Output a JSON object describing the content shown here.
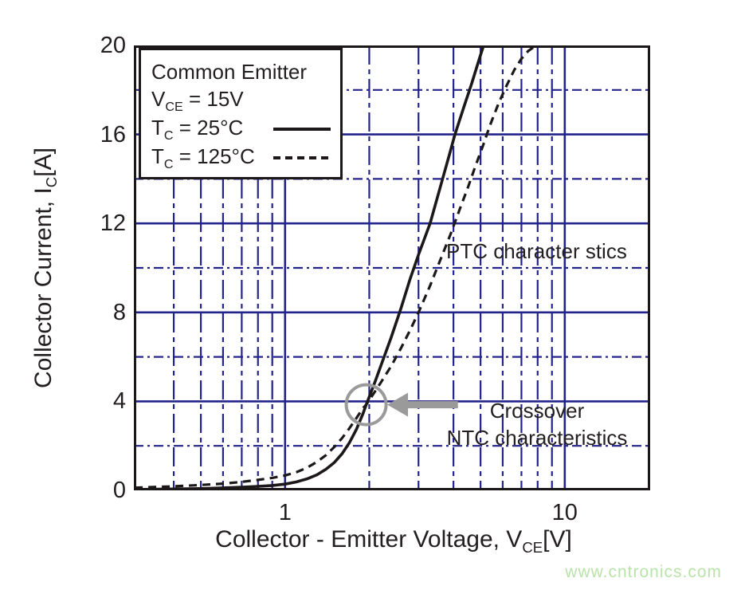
{
  "page": {
    "watermark": "www.cntronics.com",
    "watermark_color": "#b9e3aa"
  },
  "chart_data": {
    "type": "line",
    "x_axis": {
      "scale": "log",
      "min": 0.288,
      "max": 20.2,
      "label_pre": "Collector - Emitter Voltage, V",
      "label_sub": "CE",
      "label_post": "[V]",
      "ticks": [
        {
          "value": 1,
          "label": "1"
        },
        {
          "value": 10,
          "label": "10"
        }
      ],
      "major_gridlines": [
        1,
        10
      ],
      "minor_gridlines": [
        0.4,
        0.5,
        0.6,
        0.7,
        0.8,
        0.9,
        2,
        3,
        4,
        5,
        6,
        7,
        8,
        9
      ]
    },
    "y_axis": {
      "scale": "linear",
      "min": 0,
      "max": 20,
      "label_pre": "Collector Current, I",
      "label_sub": "C",
      "label_post": "[A]",
      "ticks": [
        {
          "value": 0,
          "label": "0"
        },
        {
          "value": 4,
          "label": "4"
        },
        {
          "value": 8,
          "label": "8"
        },
        {
          "value": 12,
          "label": "12"
        },
        {
          "value": 16,
          "label": "16"
        },
        {
          "value": 20,
          "label": "20"
        }
      ],
      "major_gridlines": [
        4,
        8,
        12,
        16
      ],
      "minor_gridlines": [
        2,
        6,
        10,
        14,
        18
      ]
    },
    "legend": {
      "title": "Common Emitter",
      "condition": {
        "base": "V",
        "sub": "CE",
        "rest": " = 15V"
      },
      "entries": [
        {
          "base": "T",
          "sub": "C",
          "rest": " = 25°C",
          "style": "solid"
        },
        {
          "base": "T",
          "sub": "C",
          "rest": " = 125°C",
          "style": "dashed"
        }
      ]
    },
    "series": [
      {
        "name": "TC = 25°C",
        "style": "solid",
        "points": [
          [
            0.29,
            0.04
          ],
          [
            0.4,
            0.06
          ],
          [
            0.5,
            0.08
          ],
          [
            0.6,
            0.11
          ],
          [
            0.7,
            0.14
          ],
          [
            0.8,
            0.18
          ],
          [
            0.9,
            0.22
          ],
          [
            1.0,
            0.28
          ],
          [
            1.1,
            0.38
          ],
          [
            1.2,
            0.52
          ],
          [
            1.3,
            0.7
          ],
          [
            1.4,
            0.95
          ],
          [
            1.5,
            1.25
          ],
          [
            1.6,
            1.65
          ],
          [
            1.7,
            2.15
          ],
          [
            1.8,
            2.75
          ],
          [
            1.9,
            3.45
          ],
          [
            1.95,
            3.85
          ],
          [
            2.0,
            4.2
          ],
          [
            2.1,
            4.9
          ],
          [
            2.2,
            5.6
          ],
          [
            2.4,
            6.9
          ],
          [
            2.6,
            8.2
          ],
          [
            2.8,
            9.5
          ],
          [
            3.0,
            10.6
          ],
          [
            3.3,
            12.0
          ],
          [
            3.6,
            13.7
          ],
          [
            3.85,
            15.0
          ],
          [
            4.05,
            16.0
          ],
          [
            4.35,
            17.2
          ],
          [
            4.65,
            18.3
          ],
          [
            4.95,
            19.4
          ],
          [
            5.25,
            20.4
          ]
        ]
      },
      {
        "name": "TC = 125°C",
        "style": "dashed",
        "points": [
          [
            0.29,
            0.12
          ],
          [
            0.4,
            0.18
          ],
          [
            0.5,
            0.24
          ],
          [
            0.6,
            0.3
          ],
          [
            0.7,
            0.38
          ],
          [
            0.8,
            0.47
          ],
          [
            0.9,
            0.56
          ],
          [
            1.0,
            0.67
          ],
          [
            1.1,
            0.82
          ],
          [
            1.2,
            1.02
          ],
          [
            1.3,
            1.28
          ],
          [
            1.4,
            1.58
          ],
          [
            1.5,
            1.95
          ],
          [
            1.6,
            2.35
          ],
          [
            1.7,
            2.8
          ],
          [
            1.8,
            3.25
          ],
          [
            1.9,
            3.7
          ],
          [
            1.95,
            3.85
          ],
          [
            2.0,
            4.05
          ],
          [
            2.2,
            4.85
          ],
          [
            2.4,
            5.6
          ],
          [
            2.6,
            6.4
          ],
          [
            2.8,
            7.2
          ],
          [
            3.0,
            8.0
          ],
          [
            3.3,
            9.2
          ],
          [
            3.6,
            10.4
          ],
          [
            3.9,
            11.5
          ],
          [
            4.2,
            12.6
          ],
          [
            4.5,
            13.6
          ],
          [
            4.8,
            14.6
          ],
          [
            5.1,
            15.5
          ],
          [
            5.4,
            16.4
          ],
          [
            5.8,
            17.4
          ],
          [
            6.2,
            18.2
          ],
          [
            6.6,
            18.9
          ],
          [
            7.0,
            19.4
          ],
          [
            7.4,
            19.75
          ],
          [
            7.9,
            20.0
          ],
          [
            8.5,
            20.15
          ]
        ]
      }
    ],
    "annotations": {
      "ptc_label": "PTC character stics",
      "crossover_line1": "Crossover",
      "crossover_line2": "NTC characteristics",
      "crossover_point": {
        "x": 1.95,
        "y": 3.85
      },
      "arrow": {
        "x_tip": 2.32,
        "x_tail": 4.15,
        "y": 3.85
      }
    },
    "colors": {
      "grid": "#23238c",
      "curve": "#1c181a",
      "marker_gray": "#9a9a9a",
      "text": "#231f20"
    }
  }
}
